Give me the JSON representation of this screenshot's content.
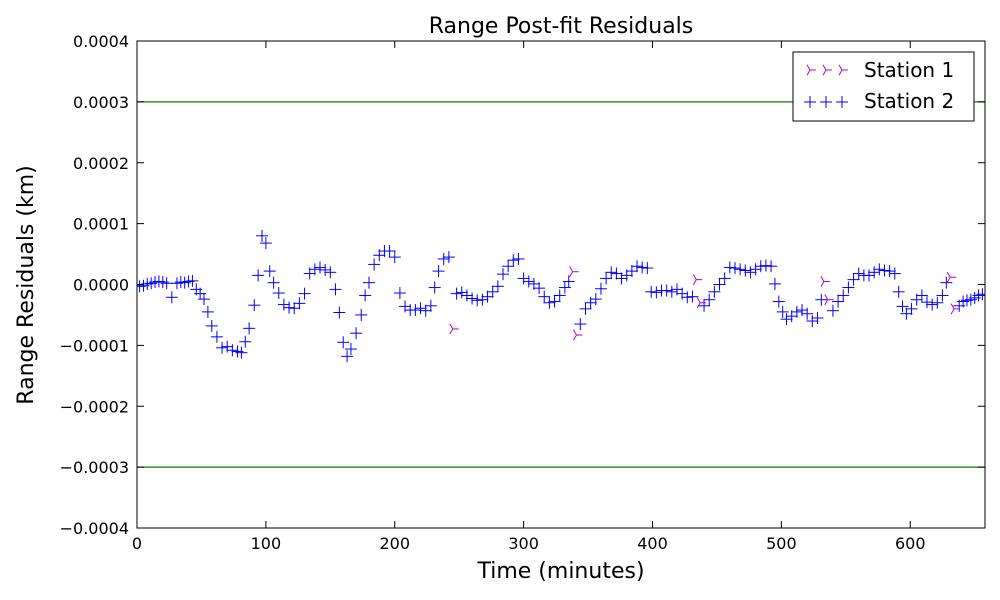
{
  "chart_data": {
    "type": "scatter",
    "title": "Range Post-fit Residuals",
    "xlabel": "Time (minutes)",
    "ylabel": "Range Residuals (km)",
    "xlim": [
      0,
      658
    ],
    "ylim": [
      -0.0004,
      0.0004
    ],
    "x_ticks": [
      0,
      100,
      200,
      300,
      400,
      500,
      600
    ],
    "x_tick_labels": [
      "0",
      "100",
      "200",
      "300",
      "400",
      "500",
      "600"
    ],
    "y_ticks": [
      0.0004,
      0.0003,
      0.0002,
      0.0001,
      0.0,
      -0.0001,
      -0.0002,
      -0.0003,
      -0.0004
    ],
    "y_tick_labels": [
      "0.0004",
      "0.0003",
      "0.0002",
      "0.0001",
      "0.0000",
      "−0.0001",
      "−0.0002",
      "−0.0003",
      "−0.0004"
    ],
    "grid": false,
    "legend_position": "top-right",
    "reference_lines": [
      {
        "y": 0.0003,
        "color": "#008000"
      },
      {
        "y": -0.0003,
        "color": "#008000"
      }
    ],
    "series": [
      {
        "name": "Station 1",
        "marker": "tri_right",
        "color": "#bf00bf",
        "points": [
          [
            245,
            -7.3e-05
          ],
          [
            338,
            2.1e-05
          ],
          [
            341,
            -8.3e-05
          ],
          [
            434,
            8e-06
          ],
          [
            437,
            -3e-05
          ],
          [
            533,
            5e-06
          ],
          [
            536,
            -2.5e-05
          ],
          [
            631,
            1.2e-05
          ],
          [
            634,
            -4e-05
          ]
        ]
      },
      {
        "name": "Station 2",
        "marker": "plus",
        "color": "#0000ff",
        "points": [
          [
            2,
            -3e-06
          ],
          [
            5,
            -2e-06
          ],
          [
            8,
            1e-06
          ],
          [
            11,
            2e-06
          ],
          [
            14,
            4e-06
          ],
          [
            17,
            5e-06
          ],
          [
            20,
            4e-06
          ],
          [
            23,
            2e-06
          ],
          [
            27,
            -2.1e-05
          ],
          [
            31,
            2e-06
          ],
          [
            34,
            4e-06
          ],
          [
            37,
            3e-06
          ],
          [
            40,
            5e-06
          ],
          [
            43,
            6e-06
          ],
          [
            46,
            -8e-06
          ],
          [
            49,
            -1.5e-05
          ],
          [
            52,
            -2.4e-05
          ],
          [
            55,
            -4.5e-05
          ],
          [
            58,
            -6.8e-05
          ],
          [
            62,
            -8.6e-05
          ],
          [
            66,
            -0.000104
          ],
          [
            70,
            -0.000102
          ],
          [
            74,
            -0.000108
          ],
          [
            78,
            -0.00011
          ],
          [
            81,
            -0.000112
          ],
          [
            84,
            -9.4e-05
          ],
          [
            87,
            -7.2e-05
          ],
          [
            91,
            -3.4e-05
          ],
          [
            94,
            1.5e-05
          ],
          [
            97,
            8e-05
          ],
          [
            100,
            6.8e-05
          ],
          [
            103,
            2.2e-05
          ],
          [
            106,
            3e-06
          ],
          [
            110,
            -1.4e-05
          ],
          [
            114,
            -3.3e-05
          ],
          [
            118,
            -3.8e-05
          ],
          [
            122,
            -3.9e-05
          ],
          [
            126,
            -3.1e-05
          ],
          [
            130,
            -1.5e-05
          ],
          [
            134,
            1.8e-05
          ],
          [
            138,
            2.5e-05
          ],
          [
            142,
            2.8e-05
          ],
          [
            146,
            2.4e-05
          ],
          [
            150,
            2e-05
          ],
          [
            154,
            -8e-06
          ],
          [
            157,
            -4.6e-05
          ],
          [
            160,
            -9.5e-05
          ],
          [
            163,
            -0.000118
          ],
          [
            166,
            -0.000106
          ],
          [
            170,
            -8e-05
          ],
          [
            174,
            -5e-05
          ],
          [
            177,
            -1.8e-05
          ],
          [
            180,
            3e-06
          ],
          [
            184,
            3.3e-05
          ],
          [
            188,
            4.8e-05
          ],
          [
            192,
            5.5e-05
          ],
          [
            196,
            5.5e-05
          ],
          [
            200,
            4.5e-05
          ],
          [
            204,
            -1.4e-05
          ],
          [
            208,
            -3.6e-05
          ],
          [
            212,
            -4.2e-05
          ],
          [
            216,
            -4.2e-05
          ],
          [
            220,
            -3.9e-05
          ],
          [
            224,
            -4.3e-05
          ],
          [
            228,
            -3.5e-05
          ],
          [
            231,
            -5e-06
          ],
          [
            234,
            2.2e-05
          ],
          [
            238,
            4.2e-05
          ],
          [
            242,
            4.5e-05
          ],
          [
            248,
            -1.5e-05
          ],
          [
            252,
            -1.3e-05
          ],
          [
            256,
            -1.8e-05
          ],
          [
            260,
            -2.3e-05
          ],
          [
            264,
            -2.6e-05
          ],
          [
            268,
            -2.5e-05
          ],
          [
            272,
            -2e-05
          ],
          [
            276,
            -1.2e-05
          ],
          [
            280,
            -3e-06
          ],
          [
            284,
            1.7e-05
          ],
          [
            288,
            3e-05
          ],
          [
            292,
            4e-05
          ],
          [
            296,
            4.2e-05
          ],
          [
            300,
            1e-05
          ],
          [
            304,
            5e-06
          ],
          [
            308,
            1e-06
          ],
          [
            312,
            -6e-06
          ],
          [
            316,
            -2e-05
          ],
          [
            320,
            -3e-05
          ],
          [
            324,
            -2.8e-05
          ],
          [
            328,
            -1.8e-05
          ],
          [
            332,
            -5e-06
          ],
          [
            335,
            5e-06
          ],
          [
            344,
            -6.5e-05
          ],
          [
            348,
            -4e-05
          ],
          [
            352,
            -3e-05
          ],
          [
            356,
            -2.4e-05
          ],
          [
            360,
            -7e-06
          ],
          [
            364,
            1e-05
          ],
          [
            368,
            2e-05
          ],
          [
            372,
            1.8e-05
          ],
          [
            376,
            1e-05
          ],
          [
            380,
            1.5e-05
          ],
          [
            384,
            2.2e-05
          ],
          [
            388,
            3e-05
          ],
          [
            392,
            2.8e-05
          ],
          [
            396,
            2.7e-05
          ],
          [
            399,
            -1.2e-05
          ],
          [
            403,
            -1.3e-05
          ],
          [
            407,
            -1e-05
          ],
          [
            411,
            -1e-05
          ],
          [
            415,
            -1.2e-05
          ],
          [
            419,
            -8e-06
          ],
          [
            423,
            -1.5e-05
          ],
          [
            427,
            -2.1e-05
          ],
          [
            431,
            -2e-05
          ],
          [
            440,
            -3.5e-05
          ],
          [
            444,
            -2.5e-05
          ],
          [
            448,
            -1.2e-05
          ],
          [
            452,
            0.0
          ],
          [
            456,
            1e-05
          ],
          [
            460,
            2.8e-05
          ],
          [
            464,
            2.7e-05
          ],
          [
            468,
            2.5e-05
          ],
          [
            472,
            2.3e-05
          ],
          [
            476,
            2e-05
          ],
          [
            480,
            2.5e-05
          ],
          [
            484,
            3e-05
          ],
          [
            488,
            3.1e-05
          ],
          [
            492,
            3e-05
          ],
          [
            495,
            1e-06
          ],
          [
            498,
            -2.8e-05
          ],
          [
            501,
            -4.5e-05
          ],
          [
            504,
            -5.7e-05
          ],
          [
            508,
            -5.2e-05
          ],
          [
            512,
            -4.5e-05
          ],
          [
            516,
            -4.2e-05
          ],
          [
            520,
            -4.8e-05
          ],
          [
            524,
            -6e-05
          ],
          [
            528,
            -5.5e-05
          ],
          [
            531,
            -2.5e-05
          ],
          [
            540,
            -4.3e-05
          ],
          [
            544,
            -2.8e-05
          ],
          [
            548,
            -1.8e-05
          ],
          [
            552,
            -5e-06
          ],
          [
            556,
            8e-06
          ],
          [
            560,
            1.8e-05
          ],
          [
            564,
            1.5e-05
          ],
          [
            568,
            1.5e-05
          ],
          [
            572,
            2e-05
          ],
          [
            576,
            2.5e-05
          ],
          [
            580,
            2.3e-05
          ],
          [
            584,
            2.2e-05
          ],
          [
            588,
            1.8e-05
          ],
          [
            591,
            -1.2e-05
          ],
          [
            594,
            -3.6e-05
          ],
          [
            597,
            -4.8e-05
          ],
          [
            601,
            -4e-05
          ],
          [
            605,
            -2.5e-05
          ],
          [
            609,
            -1.8e-05
          ],
          [
            613,
            -2.9e-05
          ],
          [
            617,
            -3.3e-05
          ],
          [
            621,
            -3e-05
          ],
          [
            625,
            -1.8e-05
          ],
          [
            628,
            3e-06
          ],
          [
            638,
            -3.5e-05
          ],
          [
            641,
            -2.8e-05
          ],
          [
            644,
            -2.6e-05
          ],
          [
            647,
            -2.5e-05
          ],
          [
            650,
            -2.2e-05
          ],
          [
            653,
            -1.8e-05
          ],
          [
            656,
            -1.6e-05
          ]
        ]
      }
    ]
  }
}
